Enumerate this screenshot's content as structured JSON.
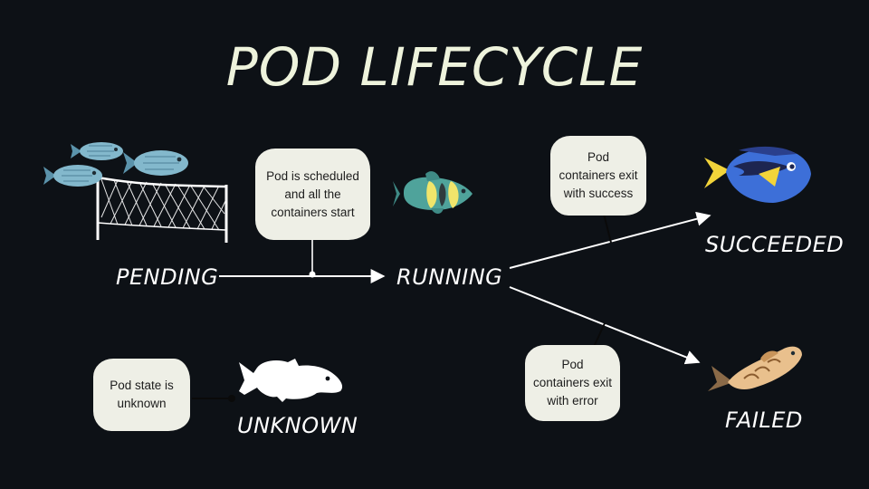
{
  "title": "POD LIFECYCLE",
  "states": {
    "pending": "PENDING",
    "running": "RUNNING",
    "succeeded": "SUCCEEDED",
    "failed": "FAILED",
    "unknown": "UNKNOWN"
  },
  "notes": {
    "scheduled": "Pod is scheduled and all the containers start",
    "success": "Pod containers exit with success",
    "error": "Pod containers exit with error",
    "unknown": "Pod state is unknown"
  },
  "icons": {
    "pending": "fish-school-net-icon",
    "running": "clownfish-icon",
    "succeeded": "blue-tang-fish-icon",
    "failed": "koi-fish-icon",
    "unknown": "silhouette-fish-icon"
  },
  "colors": {
    "background": "#0d1116",
    "title": "#eef3dc",
    "note_bg": "#eeefe6",
    "text": "#ffffff"
  }
}
